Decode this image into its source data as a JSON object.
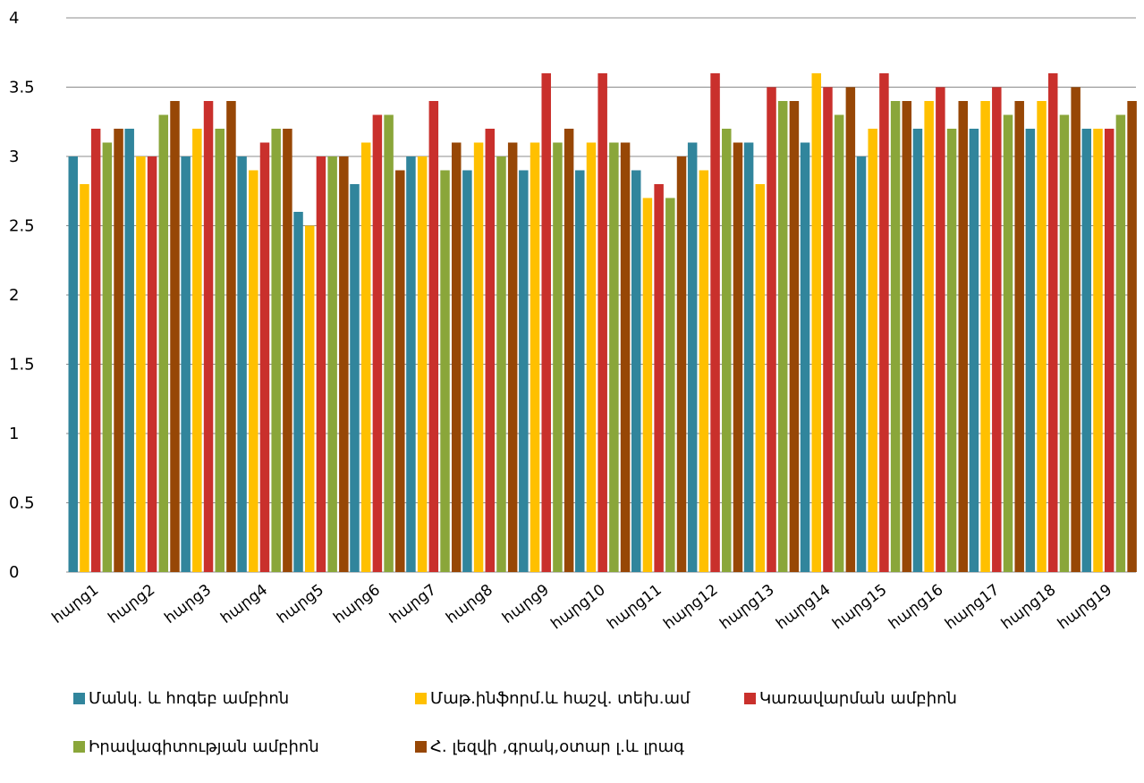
{
  "chart_data": {
    "type": "bar",
    "categories": [
      "հարց1",
      "հարց2",
      "հարց3",
      "հարց4",
      "հարց5",
      "հարց6",
      "հարց7",
      "հարց8",
      "հարց9",
      "հարց10",
      "հարց11",
      "հարց12",
      "հարց13",
      "հարց14",
      "հարց15",
      "հարց16",
      "հարց17",
      "հարց18",
      "հարց19"
    ],
    "series": [
      {
        "name": "Մանկ. և հոգեբ ամբիոն",
        "color": "#31859c",
        "values": [
          3.0,
          3.2,
          3.0,
          3.0,
          2.6,
          2.8,
          3.0,
          2.9,
          2.9,
          2.9,
          2.9,
          3.1,
          3.1,
          3.1,
          3.0,
          3.2,
          3.2,
          3.2,
          3.2
        ]
      },
      {
        "name": "Մաթ.ինֆորմ.և հաշվ. տեխ.ամ",
        "color": "#ffc000",
        "values": [
          2.8,
          3.0,
          3.2,
          2.9,
          2.5,
          3.1,
          3.0,
          3.1,
          3.1,
          3.1,
          2.7,
          2.9,
          2.8,
          3.6,
          3.2,
          3.4,
          3.4,
          3.4,
          3.2
        ]
      },
      {
        "name": "Կառավարման ամբիոն",
        "color": "#c9302c",
        "values": [
          3.2,
          3.0,
          3.4,
          3.1,
          3.0,
          3.3,
          3.4,
          3.2,
          3.6,
          3.6,
          2.8,
          3.6,
          3.5,
          3.5,
          3.6,
          3.5,
          3.5,
          3.6,
          3.2
        ]
      },
      {
        "name": "Իրավագիտության ամբիոն",
        "color": "#8aa63a",
        "values": [
          3.1,
          3.3,
          3.2,
          3.2,
          3.0,
          3.3,
          2.9,
          3.0,
          3.1,
          3.1,
          2.7,
          3.2,
          3.4,
          3.3,
          3.4,
          3.2,
          3.3,
          3.3,
          3.3
        ]
      },
      {
        "name": "Հ. լեզվի ,գրակ,օտար լ.և լրագ",
        "color": "#974706",
        "values": [
          3.2,
          3.4,
          3.4,
          3.2,
          3.0,
          2.9,
          3.1,
          3.1,
          3.2,
          3.1,
          3.0,
          3.1,
          3.4,
          3.5,
          3.4,
          3.4,
          3.4,
          3.5,
          3.4
        ]
      }
    ],
    "y_ticks": [
      "0",
      "0.5",
      "1",
      "1.5",
      "2",
      "2.5",
      "3",
      "3.5",
      "4"
    ],
    "ylim": [
      0,
      4
    ],
    "grid": true,
    "legend_position": "bottom"
  }
}
